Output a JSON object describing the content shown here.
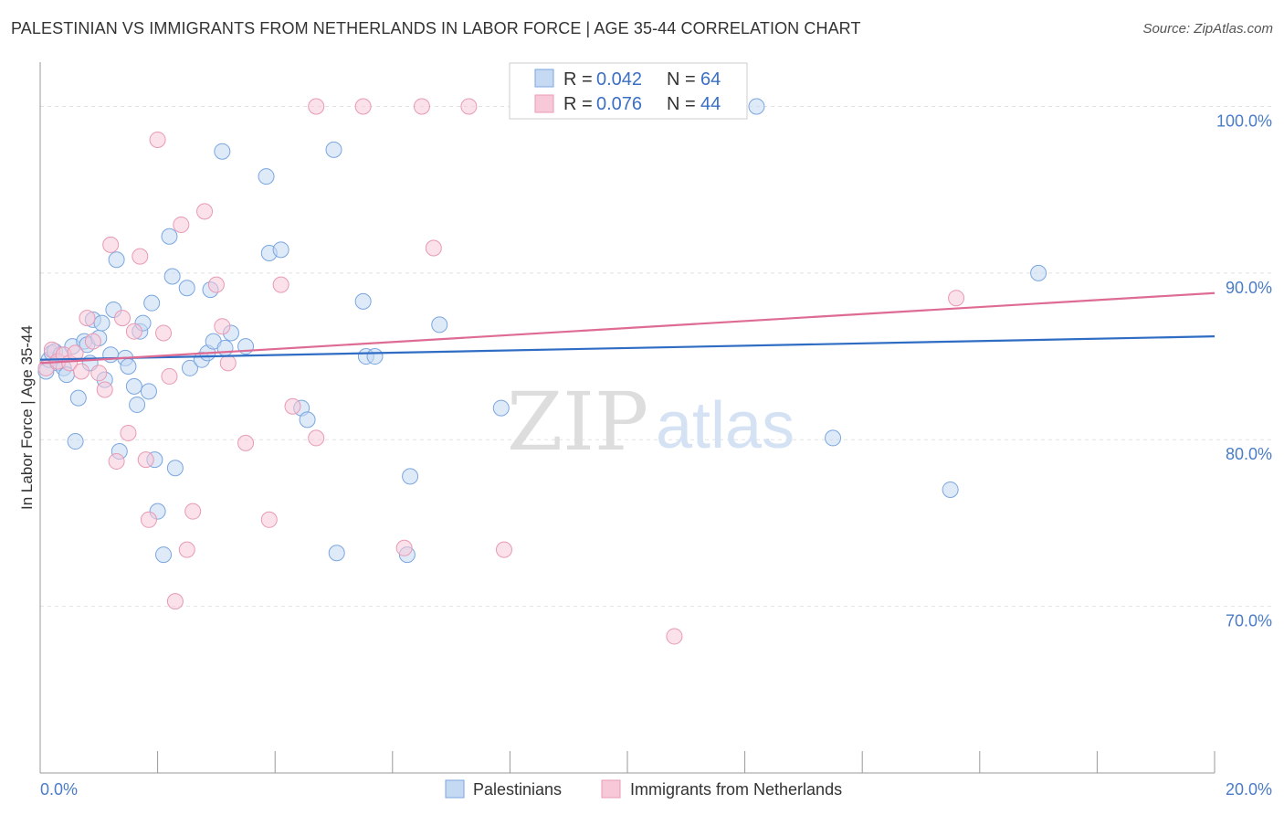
{
  "title": "PALESTINIAN VS IMMIGRANTS FROM NETHERLANDS IN LABOR FORCE | AGE 35-44 CORRELATION CHART",
  "source": "Source: ZipAtlas.com",
  "watermark": {
    "zip": "ZIP",
    "atlas": "atlas"
  },
  "chart_data": {
    "type": "scatter",
    "title": "PALESTINIAN VS IMMIGRANTS FROM NETHERLANDS IN LABOR FORCE | AGE 35-44 CORRELATION CHART",
    "xlabel": "",
    "ylabel": "In Labor Force | Age 35-44",
    "xlim": [
      0,
      20
    ],
    "ylim": [
      60,
      102
    ],
    "x_tick_labels": [
      {
        "value": 0,
        "label": "0.0%"
      },
      {
        "value": 20,
        "label": "20.0%"
      }
    ],
    "y_tick_labels": [
      {
        "value": 100,
        "label": "100.0%"
      },
      {
        "value": 90,
        "label": "90.0%"
      },
      {
        "value": 80,
        "label": "80.0%"
      },
      {
        "value": 70,
        "label": "70.0%"
      }
    ],
    "grid": true,
    "legend_position": "bottom",
    "series": [
      {
        "name": "Palestinians",
        "color": "#7aa6e0",
        "fill": "#c5d9f3",
        "line_color": "#2f6cc4",
        "R": "0.042",
        "N": "64",
        "trend": {
          "x0": 0,
          "y0": 84.8,
          "x1": 20,
          "y1": 86.2
        },
        "points": [
          [
            0.1,
            84.1
          ],
          [
            0.15,
            84.8
          ],
          [
            0.2,
            85.2
          ],
          [
            0.25,
            85.3
          ],
          [
            0.3,
            84.6
          ],
          [
            0.35,
            85.1
          ],
          [
            0.4,
            84.3
          ],
          [
            0.45,
            83.9
          ],
          [
            0.55,
            85.6
          ],
          [
            0.6,
            79.9
          ],
          [
            0.65,
            82.5
          ],
          [
            0.75,
            85.9
          ],
          [
            0.8,
            85.7
          ],
          [
            0.85,
            84.6
          ],
          [
            0.9,
            87.2
          ],
          [
            1.0,
            86.1
          ],
          [
            1.05,
            87.0
          ],
          [
            1.1,
            83.6
          ],
          [
            1.2,
            85.1
          ],
          [
            1.25,
            87.8
          ],
          [
            1.3,
            90.8
          ],
          [
            1.35,
            79.3
          ],
          [
            1.45,
            84.9
          ],
          [
            1.5,
            84.4
          ],
          [
            1.6,
            83.2
          ],
          [
            1.65,
            82.1
          ],
          [
            1.7,
            86.5
          ],
          [
            1.75,
            87.0
          ],
          [
            1.85,
            82.9
          ],
          [
            1.9,
            88.2
          ],
          [
            1.95,
            78.8
          ],
          [
            2.0,
            75.7
          ],
          [
            2.1,
            73.1
          ],
          [
            2.2,
            92.2
          ],
          [
            2.25,
            89.8
          ],
          [
            2.3,
            78.3
          ],
          [
            2.5,
            89.1
          ],
          [
            2.55,
            84.3
          ],
          [
            2.75,
            84.8
          ],
          [
            2.85,
            85.2
          ],
          [
            2.9,
            89.0
          ],
          [
            2.95,
            85.9
          ],
          [
            3.1,
            97.3
          ],
          [
            3.15,
            85.5
          ],
          [
            3.25,
            86.4
          ],
          [
            3.5,
            85.6
          ],
          [
            3.85,
            95.8
          ],
          [
            3.9,
            91.2
          ],
          [
            4.1,
            91.4
          ],
          [
            4.45,
            81.9
          ],
          [
            4.55,
            81.2
          ],
          [
            5.0,
            97.4
          ],
          [
            5.05,
            73.2
          ],
          [
            5.5,
            88.3
          ],
          [
            5.55,
            85.0
          ],
          [
            5.7,
            85.0
          ],
          [
            6.25,
            73.1
          ],
          [
            6.3,
            77.8
          ],
          [
            6.8,
            86.9
          ],
          [
            7.85,
            81.9
          ],
          [
            12.2,
            100.0
          ],
          [
            13.5,
            80.1
          ],
          [
            15.5,
            77.0
          ],
          [
            17.0,
            90.0
          ]
        ]
      },
      {
        "name": "Immigrants from Netherlands",
        "color": "#e89ab4",
        "fill": "#f7c9d8",
        "line_color": "#de6b94",
        "R": "0.076",
        "N": "44",
        "trend": {
          "x0": 0,
          "y0": 84.6,
          "x1": 20,
          "y1": 88.8
        },
        "points": [
          [
            0.1,
            84.3
          ],
          [
            0.2,
            85.4
          ],
          [
            0.3,
            84.7
          ],
          [
            0.4,
            85.1
          ],
          [
            0.5,
            84.6
          ],
          [
            0.6,
            85.2
          ],
          [
            0.7,
            84.1
          ],
          [
            0.8,
            87.3
          ],
          [
            0.9,
            85.9
          ],
          [
            1.0,
            84.0
          ],
          [
            1.1,
            83.0
          ],
          [
            1.2,
            91.7
          ],
          [
            1.3,
            78.7
          ],
          [
            1.4,
            87.3
          ],
          [
            1.5,
            80.4
          ],
          [
            1.6,
            86.5
          ],
          [
            1.7,
            91.0
          ],
          [
            1.8,
            78.8
          ],
          [
            1.85,
            75.2
          ],
          [
            2.0,
            98.0
          ],
          [
            2.1,
            86.4
          ],
          [
            2.2,
            83.8
          ],
          [
            2.3,
            70.3
          ],
          [
            2.4,
            92.9
          ],
          [
            2.5,
            73.4
          ],
          [
            2.6,
            75.7
          ],
          [
            2.8,
            93.7
          ],
          [
            3.0,
            89.3
          ],
          [
            3.1,
            86.8
          ],
          [
            3.2,
            84.6
          ],
          [
            3.5,
            79.8
          ],
          [
            3.9,
            75.2
          ],
          [
            4.1,
            89.3
          ],
          [
            4.3,
            82.0
          ],
          [
            4.7,
            80.1
          ],
          [
            4.7,
            100.0
          ],
          [
            5.5,
            100.0
          ],
          [
            6.2,
            73.5
          ],
          [
            6.5,
            100.0
          ],
          [
            6.7,
            91.5
          ],
          [
            7.3,
            100.0
          ],
          [
            7.9,
            73.4
          ],
          [
            10.8,
            68.2
          ],
          [
            15.6,
            88.5
          ]
        ]
      }
    ]
  }
}
